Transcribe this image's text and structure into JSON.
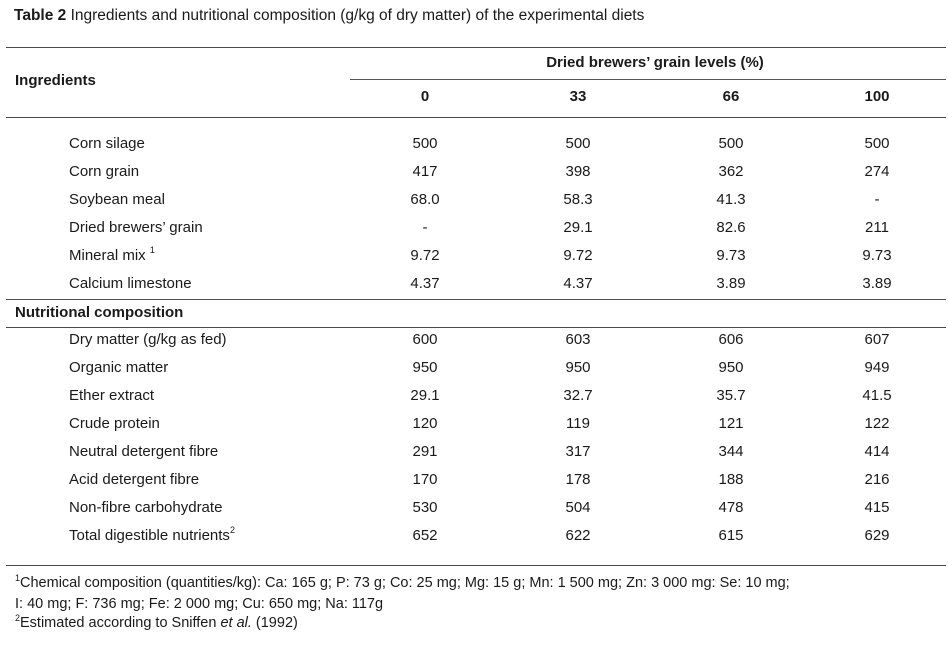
{
  "title": {
    "label": "Table 2",
    "text": " Ingredients and nutritional composition (g/kg of dry matter) of the experimental diets"
  },
  "header": {
    "ingredients": "Ingredients",
    "group": "Dried brewers’ grain levels (%)",
    "levels": [
      "0",
      "33",
      "66",
      "100"
    ]
  },
  "ingredients": [
    {
      "name": "Corn silage",
      "sup": "",
      "values": [
        "500",
        "500",
        "500",
        "500"
      ]
    },
    {
      "name": "Corn grain",
      "sup": "",
      "values": [
        "417",
        "398",
        "362",
        "274"
      ]
    },
    {
      "name": "Soybean meal",
      "sup": "",
      "values": [
        "68.0",
        "58.3",
        "41.3",
        "-"
      ]
    },
    {
      "name": "Dried brewers’ grain",
      "sup": "",
      "values": [
        "-",
        "29.1",
        "82.6",
        "211"
      ]
    },
    {
      "name": "Mineral mix ",
      "sup": "1",
      "values": [
        "9.72",
        "9.72",
        "9.73",
        "9.73"
      ]
    },
    {
      "name": "Calcium limestone",
      "sup": "",
      "values": [
        "4.37",
        "4.37",
        "3.89",
        "3.89"
      ]
    }
  ],
  "nutritional_label": "Nutritional composition",
  "nutritional": [
    {
      "name": "Dry matter (g/kg as fed)",
      "sup": "",
      "values": [
        "600",
        "603",
        "606",
        "607"
      ]
    },
    {
      "name": "Organic matter",
      "sup": "",
      "values": [
        "950",
        "950",
        "950",
        "949"
      ]
    },
    {
      "name": "Ether extract",
      "sup": "",
      "values": [
        "29.1",
        "32.7",
        "35.7",
        "41.5"
      ]
    },
    {
      "name": "Crude protein",
      "sup": "",
      "values": [
        "120",
        "119",
        "121",
        "122"
      ]
    },
    {
      "name": "Neutral detergent fibre",
      "sup": "",
      "values": [
        "291",
        "317",
        "344",
        "414"
      ]
    },
    {
      "name": "Acid detergent fibre",
      "sup": "",
      "values": [
        "170",
        "178",
        "188",
        "216"
      ]
    },
    {
      "name": "Non-fibre carbohydrate",
      "sup": "",
      "values": [
        "530",
        "504",
        "478",
        "415"
      ]
    },
    {
      "name": "Total digestible nutrients",
      "sup": "2",
      "values": [
        "652",
        "622",
        "615",
        "629"
      ]
    }
  ],
  "footnotes": {
    "note1_mark": "1",
    "note1_line1": "Chemical composition (quantities/kg): Ca: 165 g; P: 73 g; Co: 25 mg; Mg: 15 g; Mn: 1 500 mg; Zn: 3 000 mg: Se: 10 mg;",
    "note1_line2": "I: 40 mg; F: 736 mg; Fe: 2 000 mg; Cu: 650 mg; Na: 117g",
    "note2_mark": "2",
    "note2_pre": "Estimated according to Sniffen ",
    "note2_italic": "et al.",
    "note2_post": " (1992)"
  }
}
